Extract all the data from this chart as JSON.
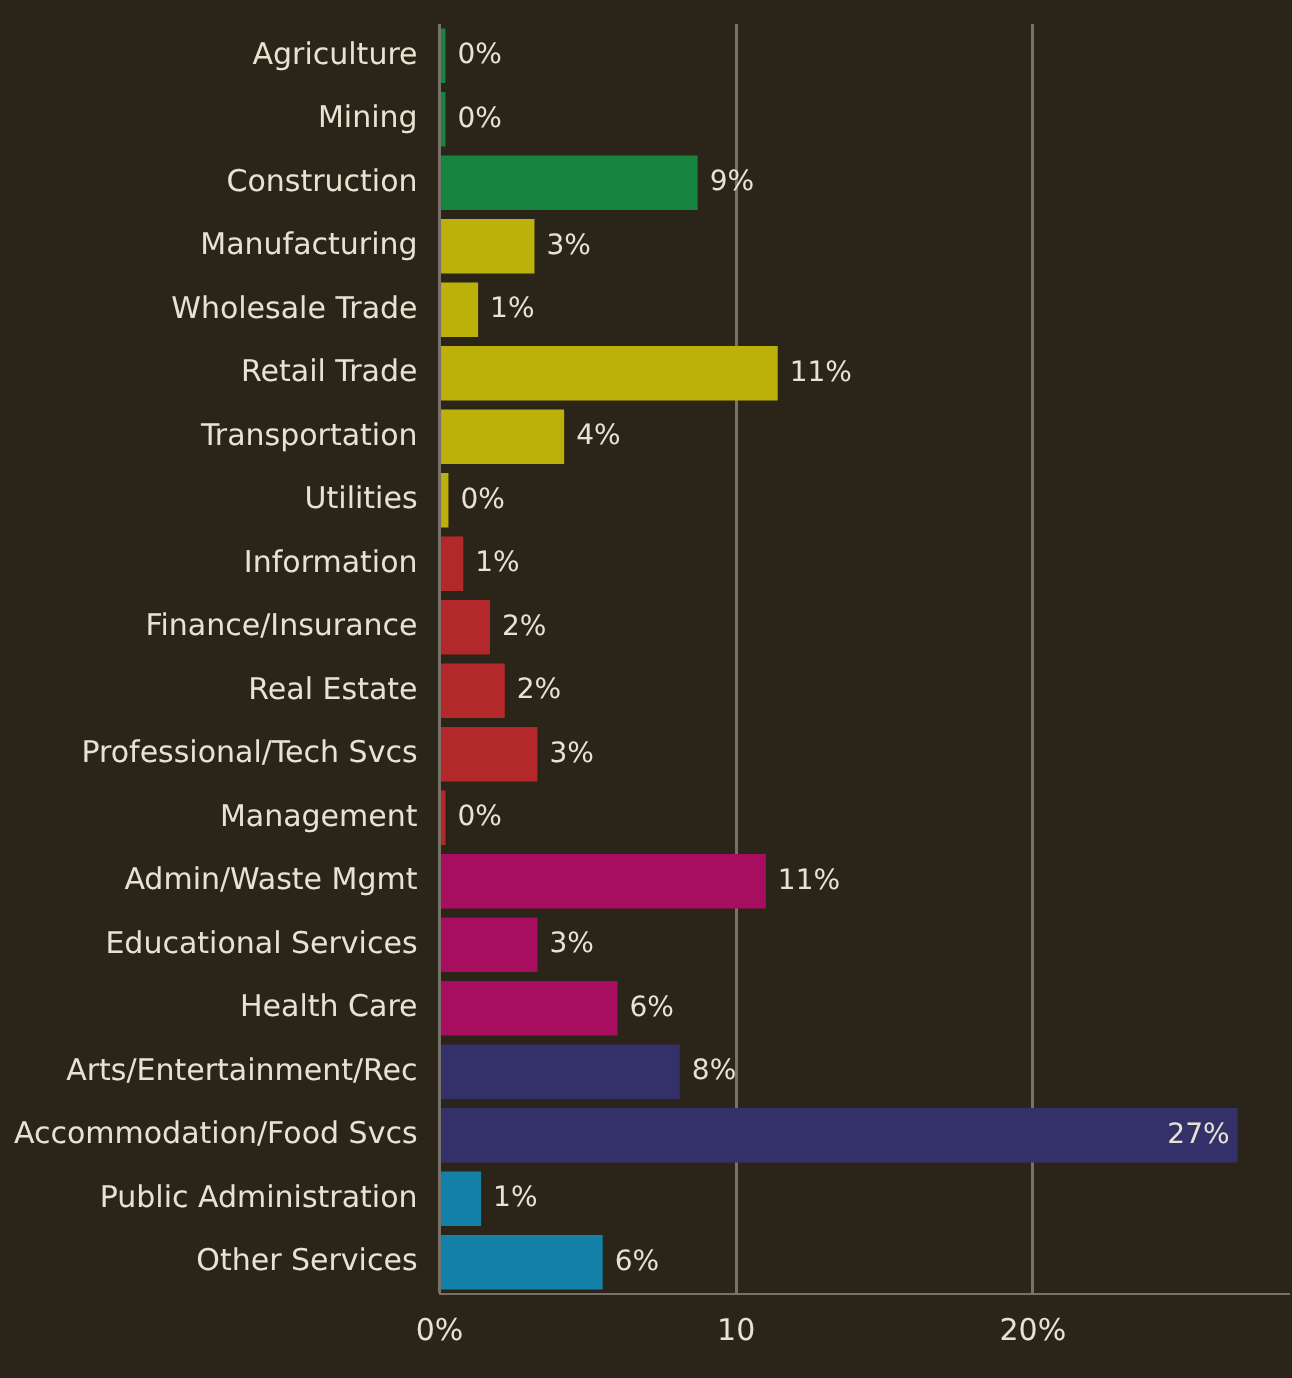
{
  "chart_data": {
    "type": "bar",
    "orientation": "horizontal",
    "categories": [
      "Agriculture",
      "Mining",
      "Construction",
      "Manufacturing",
      "Wholesale Trade",
      "Retail Trade",
      "Transportation",
      "Utilities",
      "Information",
      "Finance/Insurance",
      "Real Estate",
      "Professional/Tech Svcs",
      "Management",
      "Admin/Waste Mgmt",
      "Educational Services",
      "Health Care",
      "Arts/Entertainment/Rec",
      "Accommodation/Food Svcs",
      "Public Administration",
      "Other Services"
    ],
    "values": [
      0.2,
      0.2,
      8.7,
      3.2,
      1.3,
      11.4,
      4.2,
      0.3,
      0.8,
      1.7,
      2.2,
      3.3,
      0.2,
      11.0,
      3.3,
      6.0,
      8.1,
      26.9,
      1.4,
      5.5
    ],
    "colors": [
      "#17843f",
      "#17843f",
      "#17843f",
      "#bcb00a",
      "#bcb00a",
      "#bcb00a",
      "#bcb00a",
      "#bcb00a",
      "#b3292b",
      "#b3292b",
      "#b3292b",
      "#b3292b",
      "#b3292b",
      "#a80e5f",
      "#a80e5f",
      "#a80e5f",
      "#34306a",
      "#34306a",
      "#1381a8",
      "#1381a8"
    ],
    "value_labels": [
      "0%",
      "0%",
      "9%",
      "3%",
      "1%",
      "11%",
      "4%",
      "0%",
      "1%",
      "2%",
      "2%",
      "3%",
      "0%",
      "11%",
      "3%",
      "6%",
      "8%",
      "27%",
      "1%",
      "6%"
    ],
    "xlim": [
      0,
      28.6
    ],
    "xticks": [
      {
        "value": 0,
        "label": "0%"
      },
      10,
      {
        "value": 20,
        "label": "20%"
      }
    ],
    "grid": "x",
    "legend": false
  }
}
